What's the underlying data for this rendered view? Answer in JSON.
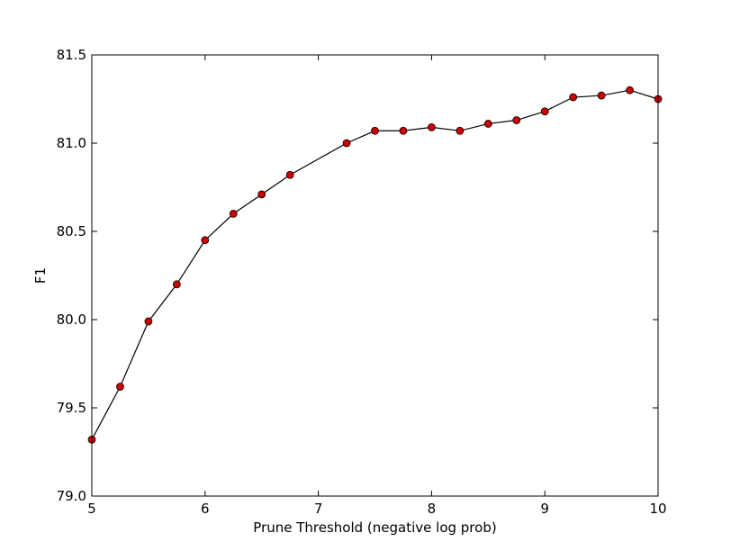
{
  "chart_data": {
    "type": "line",
    "title": "",
    "xlabel": "Prune Threshold (negative log prob)",
    "ylabel": "F1",
    "xlim": [
      5,
      10
    ],
    "ylim": [
      79.0,
      81.5
    ],
    "x_ticks": [
      5,
      6,
      7,
      8,
      9,
      10
    ],
    "x_tick_labels": [
      "5",
      "6",
      "7",
      "8",
      "9",
      "10"
    ],
    "y_ticks": [
      79.0,
      79.5,
      80.0,
      80.5,
      81.0,
      81.5
    ],
    "y_tick_labels": [
      "79.0",
      "79.5",
      "80.0",
      "80.5",
      "81.0",
      "81.5"
    ],
    "grid": false,
    "legend": "none",
    "line_color": "#000000",
    "marker_color": "#cc0000",
    "series": [
      {
        "x": [
          5.0,
          5.25,
          5.5,
          5.75,
          6.0,
          6.25,
          6.5,
          6.75,
          7.25,
          7.5,
          7.75,
          8.0,
          8.25,
          8.5,
          8.75,
          9.0,
          9.25,
          9.5,
          9.75,
          10.0
        ],
        "values": [
          79.32,
          79.62,
          79.99,
          80.2,
          80.45,
          80.6,
          80.71,
          80.82,
          81.0,
          81.07,
          81.07,
          81.09,
          81.07,
          81.11,
          81.13,
          81.18,
          81.26,
          81.27,
          81.3,
          81.25
        ]
      }
    ]
  }
}
